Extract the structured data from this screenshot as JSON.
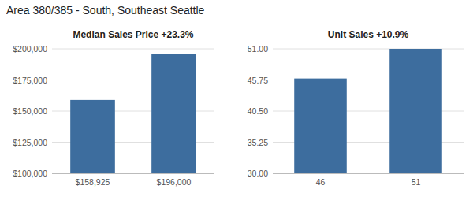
{
  "title": "Area 380/385 - South, Southeast Seattle",
  "chart_data": [
    {
      "type": "bar",
      "title": "Median Sales Price +23.3%",
      "categories": [
        "$158,925",
        "$196,000"
      ],
      "values": [
        158925,
        196000
      ],
      "color": "#3d6d9e",
      "ylim": [
        100000,
        200000
      ],
      "yticks": [
        {
          "value": 100000,
          "label": "$100,000"
        },
        {
          "value": 125000,
          "label": "$125,000"
        },
        {
          "value": 150000,
          "label": "$150,000"
        },
        {
          "value": 175000,
          "label": "$175,000"
        },
        {
          "value": 200000,
          "label": "$200,000"
        }
      ],
      "grid": true
    },
    {
      "type": "bar",
      "title": "Unit Sales +10.9%",
      "categories": [
        "46",
        "51"
      ],
      "values": [
        46,
        51
      ],
      "color": "#3d6d9e",
      "ylim": [
        30.0,
        51.0
      ],
      "yticks": [
        {
          "value": 30.0,
          "label": "30.00"
        },
        {
          "value": 35.25,
          "label": "35.25"
        },
        {
          "value": 40.5,
          "label": "40.50"
        },
        {
          "value": 45.75,
          "label": "45.75"
        },
        {
          "value": 51.0,
          "label": "51.00"
        }
      ],
      "grid": true
    }
  ]
}
